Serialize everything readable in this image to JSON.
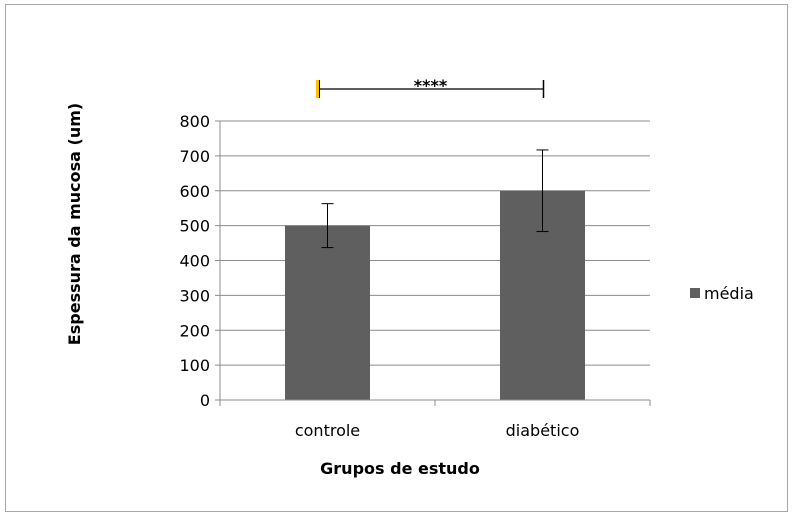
{
  "chart_data": {
    "type": "bar",
    "title": "",
    "categories": [
      "controle",
      "diabético"
    ],
    "series": [
      {
        "name": "média",
        "values": [
          500,
          600
        ],
        "error": [
          63,
          117
        ],
        "color": "#5f5f5f"
      }
    ],
    "xlabel": "Grupos de estudo",
    "ylabel": "Espessura da mucosa (um)",
    "ylim": [
      0,
      800
    ],
    "yticks": [
      0,
      100,
      200,
      300,
      400,
      500,
      600,
      700,
      800
    ],
    "grid": true,
    "legend_position": "right",
    "annotations": [
      {
        "text": "****",
        "type": "significance-bracket",
        "from": "controle",
        "to": "diabético",
        "end_marker_color": "#ffc000"
      }
    ],
    "colors": {
      "gridline": "#8c8c8c",
      "axis": "#8c8c8c",
      "frame": "#a6a6a6"
    }
  }
}
